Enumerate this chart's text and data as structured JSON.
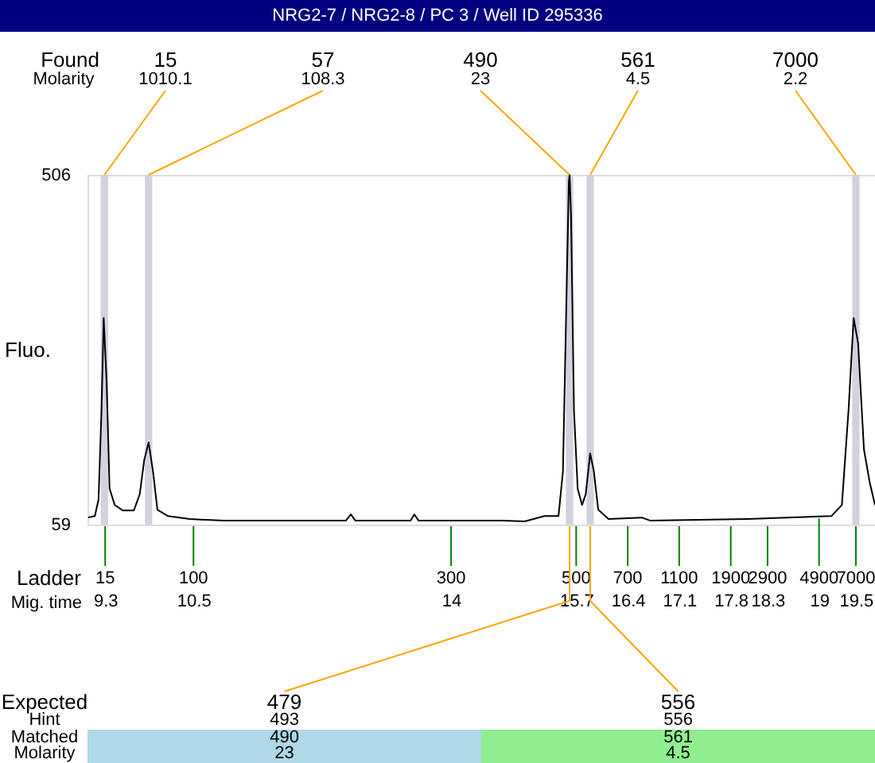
{
  "chart_data": {
    "type": "line",
    "title": "NRG2-7 / NRG2-8 / PC 3 / Well ID 295336",
    "ylabel": "Fluo.",
    "xlabel": "Mig. time",
    "x": [
      9.07,
      9.16,
      9.21,
      9.25,
      9.28,
      9.32,
      9.36,
      9.43,
      9.54,
      9.69,
      9.77,
      9.83,
      9.89,
      9.95,
      10.01,
      10.15,
      10.45,
      10.91,
      12.57,
      12.64,
      12.7,
      13.45,
      13.5,
      13.56,
      14.7,
      15.0,
      15.27,
      15.46,
      15.52,
      15.56,
      15.6,
      15.61,
      15.63,
      15.67,
      15.72,
      15.78,
      15.83,
      15.89,
      15.94,
      16.0,
      16.14,
      16.59,
      16.71,
      18.03,
      19.17,
      19.31,
      19.4,
      19.47,
      19.53,
      19.61,
      19.69,
      19.76
    ],
    "series": [
      {
        "color": "#000000",
        "values": [
          68,
          70,
          91,
          205,
          323,
          241,
          105,
          84,
          77,
          77,
          98,
          141,
          164,
          127,
          78,
          70,
          66,
          64,
          64,
          72,
          64,
          64,
          72,
          64,
          64,
          63,
          70,
          70,
          127,
          312,
          497,
          506,
          455,
          205,
          105,
          84,
          98,
          150,
          127,
          78,
          66,
          68,
          64,
          66,
          70,
          84,
          205,
          323,
          291,
          155,
          112,
          84
        ]
      }
    ],
    "xlim": [
      9.06,
      19.76
    ],
    "xticks": [
      9.3,
      10.5,
      14,
      15.7,
      16.4,
      17.1,
      17.8,
      18.3,
      19,
      19.5
    ],
    "ylim": [
      59,
      506
    ],
    "yticks": [
      59,
      506
    ],
    "grid": false,
    "marker": "none",
    "bands": [
      {
        "axis": "x",
        "from": 9.24,
        "to": 9.34,
        "color": "#d2d2df"
      },
      {
        "axis": "x",
        "from": 9.84,
        "to": 9.94,
        "color": "#d2d2df"
      },
      {
        "axis": "x",
        "from": 15.56,
        "to": 15.66,
        "color": "#d2d2df"
      },
      {
        "axis": "x",
        "from": 15.84,
        "to": 15.94,
        "color": "#d2d2df"
      },
      {
        "axis": "x",
        "from": 19.45,
        "to": 19.55,
        "color": "#d2d2df"
      }
    ],
    "annotations": [
      "Found",
      "Molarity",
      {
        "text": "15",
        "x": 9.29,
        "y": 506
      },
      "1010.1",
      {
        "text": "57",
        "x": 9.89,
        "y": 506
      },
      "108.3",
      {
        "text": "490",
        "x": 15.61,
        "y": 506
      },
      "23",
      {
        "text": "561",
        "x": 15.89,
        "y": 506
      },
      "4.5",
      {
        "text": "7000",
        "x": 19.5,
        "y": 506
      },
      "2.2",
      "Ladder",
      {
        "text": "15",
        "x": 9.3,
        "y": 59
      },
      {
        "text": "100",
        "x": 10.5,
        "y": 59
      },
      {
        "text": "300",
        "x": 14,
        "y": 59
      },
      {
        "text": "500",
        "x": 15.7,
        "y": 59
      },
      {
        "text": "700",
        "x": 16.4,
        "y": 59
      },
      {
        "text": "1100",
        "x": 17.1,
        "y": 59
      },
      {
        "text": "1900",
        "x": 17.8,
        "y": 59
      },
      {
        "text": "2900",
        "x": 18.3,
        "y": 59
      },
      {
        "text": "4900",
        "x": 19,
        "y": 69
      },
      {
        "text": "7000",
        "x": 19.5,
        "y": 59
      },
      "Expected",
      "Hint",
      "Matched",
      "Molarity",
      {
        "text": "479",
        "x": 15.61,
        "y": 59
      },
      "493",
      "490",
      "23",
      {
        "text": "556",
        "x": 15.89,
        "y": 59
      },
      "556",
      "561",
      "4.5"
    ]
  }
}
